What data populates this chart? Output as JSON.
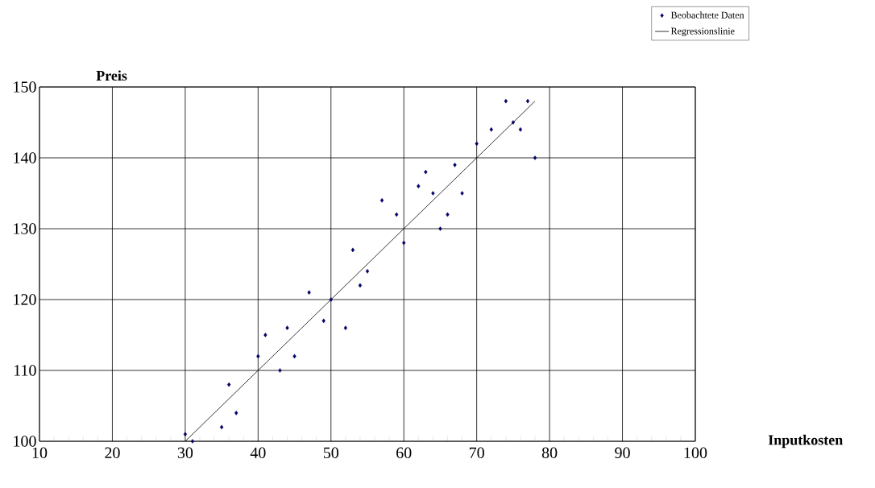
{
  "chart_data": {
    "type": "scatter",
    "xlabel": "Inputkosten",
    "ylabel": "Preis",
    "xlim": [
      10,
      100
    ],
    "ylim": [
      100,
      150
    ],
    "xticks": [
      10,
      20,
      30,
      40,
      50,
      60,
      70,
      80,
      90,
      100
    ],
    "yticks": [
      100,
      110,
      120,
      130,
      140,
      150
    ],
    "grid": true,
    "legend": "top right",
    "marker": "diamond",
    "series": [
      {
        "name": "Beobachtete Daten",
        "color": "#000066",
        "x": [
          30,
          31,
          35,
          36,
          37,
          40,
          41,
          43,
          44,
          45,
          47,
          49,
          50,
          52,
          53,
          54,
          55,
          57,
          59,
          60,
          62,
          63,
          64,
          65,
          66,
          67,
          68,
          70,
          72,
          74,
          75,
          76,
          77,
          78
        ],
        "values": [
          101,
          100,
          102,
          108,
          104,
          112,
          115,
          110,
          116,
          112,
          121,
          117,
          120,
          116,
          127,
          122,
          124,
          134,
          132,
          128,
          136,
          138,
          135,
          130,
          132,
          139,
          135,
          142,
          144,
          148,
          145,
          144,
          148,
          140
        ]
      },
      {
        "name": "Regressionslinie",
        "type": "line",
        "marker": "none",
        "color": "#000000",
        "x": [
          30,
          78
        ],
        "values": [
          100,
          148
        ]
      }
    ]
  }
}
